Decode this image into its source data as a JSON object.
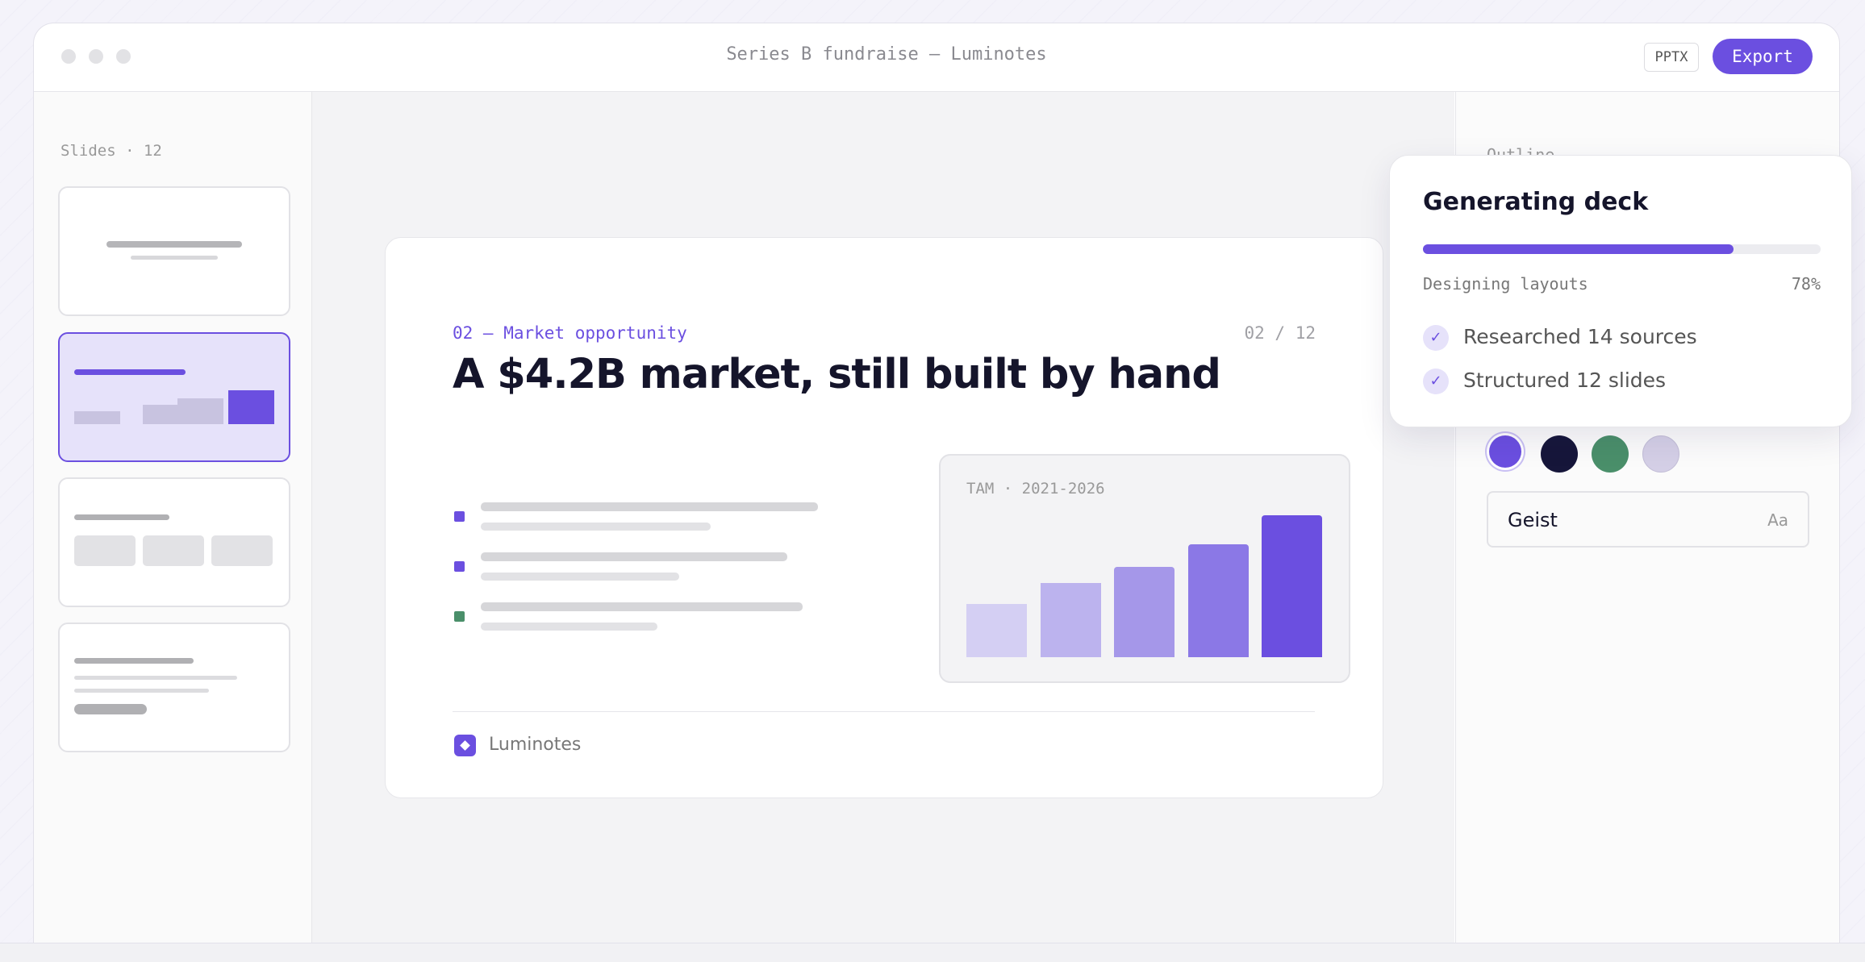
{
  "window": {
    "title": "Series B fundraise — Luminotes",
    "buttons": [
      "PPTX",
      "Export"
    ]
  },
  "sidebar": {
    "heading": "Slides · 12"
  },
  "slide": {
    "eyebrow": "02 — Market opportunity",
    "counter": "02 / 12",
    "headline": "A $4.2B market, still built by hand",
    "chart_label": "TAM · 2021-2026",
    "footer": "Luminotes"
  },
  "panel": {
    "heading": "Outline",
    "font": {
      "name": "Geist",
      "sample": "Aa"
    }
  },
  "popup": {
    "title": "Generating deck",
    "status": "Designing layouts",
    "progress": {
      "value": 78,
      "label": "78%"
    },
    "steps": [
      "Researched 14 sources",
      "Structured 12 slides"
    ]
  }
}
